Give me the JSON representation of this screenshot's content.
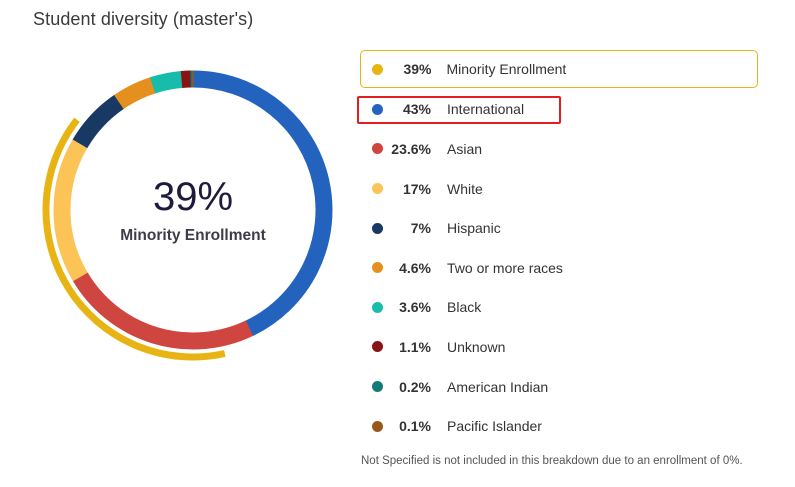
{
  "title": "Student diversity (master's)",
  "colors": {
    "minority_arc": "#e8b414",
    "highlight_border": "#e8b414",
    "annotation_box": "#e02020"
  },
  "chart_data": {
    "type": "pie",
    "center_value": "39%",
    "center_label": "Minority Enrollment",
    "categories": [
      "International",
      "Asian",
      "White",
      "Hispanic",
      "Two or more races",
      "Black",
      "Unknown",
      "American Indian",
      "Pacific Islander"
    ],
    "values": [
      43,
      23.6,
      17,
      7,
      4.6,
      3.6,
      1.1,
      0.2,
      0.1
    ],
    "series_colors": [
      "#2463bd",
      "#cf4540",
      "#fcc457",
      "#173963",
      "#e58f1e",
      "#17bdaa",
      "#8a1414",
      "#127a77",
      "#98581a"
    ],
    "minority_share": 39
  },
  "legend": [
    {
      "pct": "39%",
      "label": "Minority Enrollment",
      "color": "#e8b414"
    },
    {
      "pct": "43%",
      "label": "International",
      "color": "#2463bd"
    },
    {
      "pct": "23.6%",
      "label": "Asian",
      "color": "#cf4540"
    },
    {
      "pct": "17%",
      "label": "White",
      "color": "#fcc457"
    },
    {
      "pct": "7%",
      "label": "Hispanic",
      "color": "#173963"
    },
    {
      "pct": "4.6%",
      "label": "Two or more races",
      "color": "#e58f1e"
    },
    {
      "pct": "3.6%",
      "label": "Black",
      "color": "#17bdaa"
    },
    {
      "pct": "1.1%",
      "label": "Unknown",
      "color": "#8a1414"
    },
    {
      "pct": "0.2%",
      "label": "American Indian",
      "color": "#127a77"
    },
    {
      "pct": "0.1%",
      "label": "Pacific Islander",
      "color": "#98581a"
    }
  ],
  "footnote": "Not Specified is not included in this breakdown due to an enrollment of 0%."
}
